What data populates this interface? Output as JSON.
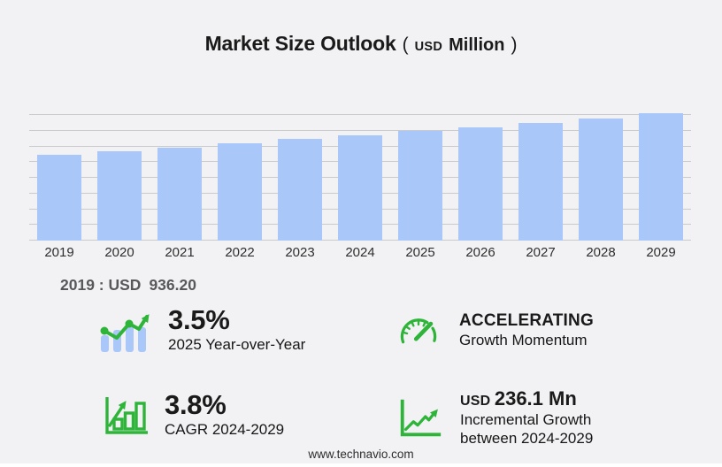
{
  "title": {
    "main": "Market Size Outlook",
    "paren_open": "(",
    "unit_small": "USD",
    "unit_large": "Million",
    "paren_close": ")"
  },
  "chart_data": {
    "type": "bar",
    "title": "Market Size Outlook (USD Million)",
    "xlabel": "",
    "ylabel": "USD Million",
    "categories": [
      "2019",
      "2020",
      "2021",
      "2022",
      "2023",
      "2024",
      "2025",
      "2026",
      "2027",
      "2028",
      "2029"
    ],
    "values": [
      936.2,
      976.0,
      1017.5,
      1060.8,
      1105.8,
      1152.9,
      1193.2,
      1238.0,
      1284.5,
      1334.0,
      1389.0
    ],
    "ylim": [
      0,
      1563
    ],
    "grid": true,
    "gridline_count": 9,
    "y_tick_labels_visible": false,
    "legend": false,
    "bar_color": "#a9c7f8",
    "labeled_point": {
      "category": "2019",
      "label": "2019 : USD 936.20"
    }
  },
  "note_2019": {
    "prefix": "2019 : USD",
    "value": "936.20"
  },
  "stats": {
    "yoy": {
      "value": "3.5%",
      "label": "2025 Year-over-Year",
      "icon": "bars-trendline-icon"
    },
    "momentum": {
      "value": "ACCELERATING",
      "label": "Growth Momentum",
      "icon": "gauge-icon"
    },
    "cagr": {
      "value": "3.8%",
      "label": "CAGR 2024-2029",
      "icon": "outline-bars-arrow-icon"
    },
    "incremental": {
      "currency": "USD",
      "value": "236.1 Mn",
      "label_line1": "Incremental Growth",
      "label_line2": "between 2024-2029",
      "icon": "axes-trend-arrow-icon"
    }
  },
  "footer": {
    "url": "www.technavio.com"
  },
  "colors": {
    "background": "#f2f2f4",
    "bar": "#a9c7f8",
    "grid": "#c9cacc",
    "green": "#2fb43a",
    "text_dark": "#1a1a1a",
    "text_gray": "#57585a"
  }
}
